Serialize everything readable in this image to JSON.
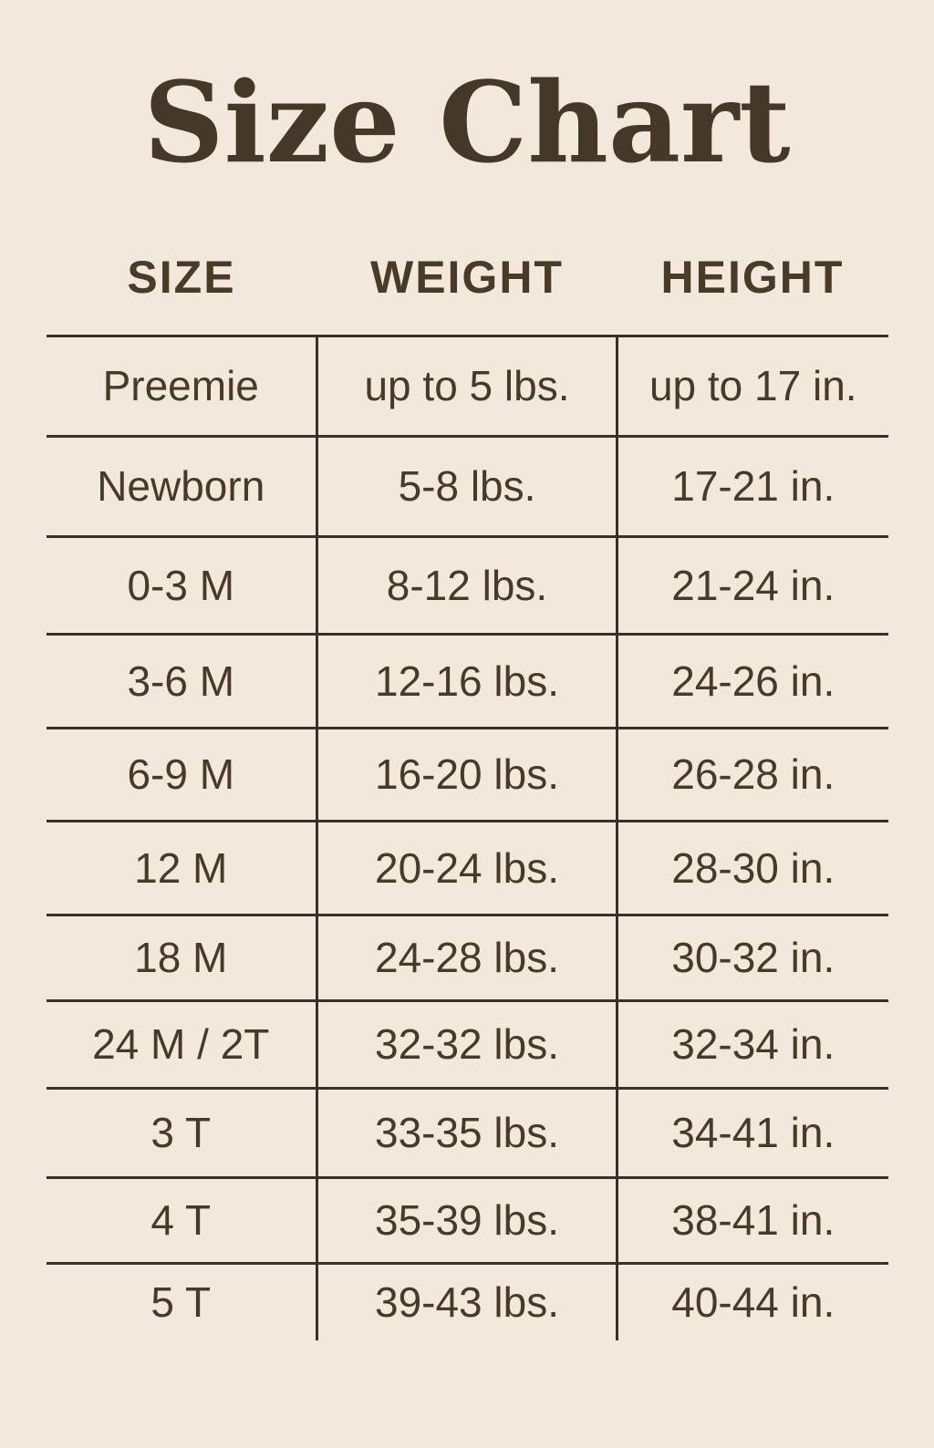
{
  "page": {
    "background_color": "#f2e9dc",
    "text_color": "#473a29",
    "line_color": "#3a3026",
    "title_color": "#463828"
  },
  "chart_data": {
    "type": "table",
    "title": "Size Chart",
    "columns": [
      "SIZE",
      "WEIGHT",
      "HEIGHT"
    ],
    "rows": [
      [
        "Preemie",
        "up to 5 lbs.",
        "up to 17 in."
      ],
      [
        "Newborn",
        "5-8 lbs.",
        "17-21 in."
      ],
      [
        "0-3 M",
        "8-12 lbs.",
        "21-24 in."
      ],
      [
        "3-6 M",
        "12-16 lbs.",
        "24-26 in."
      ],
      [
        "6-9 M",
        "16-20 lbs.",
        "26-28 in."
      ],
      [
        "12 M",
        "20-24 lbs.",
        "28-30 in."
      ],
      [
        "18 M",
        "24-28 lbs.",
        "30-32 in."
      ],
      [
        "24 M / 2T",
        "32-32 lbs.",
        "32-34 in."
      ],
      [
        "3 T",
        "33-35 lbs.",
        "34-41 in."
      ],
      [
        "4 T",
        "35-39 lbs.",
        "38-41 in."
      ],
      [
        "5 T",
        "39-43 lbs.",
        "40-44 in."
      ]
    ]
  }
}
